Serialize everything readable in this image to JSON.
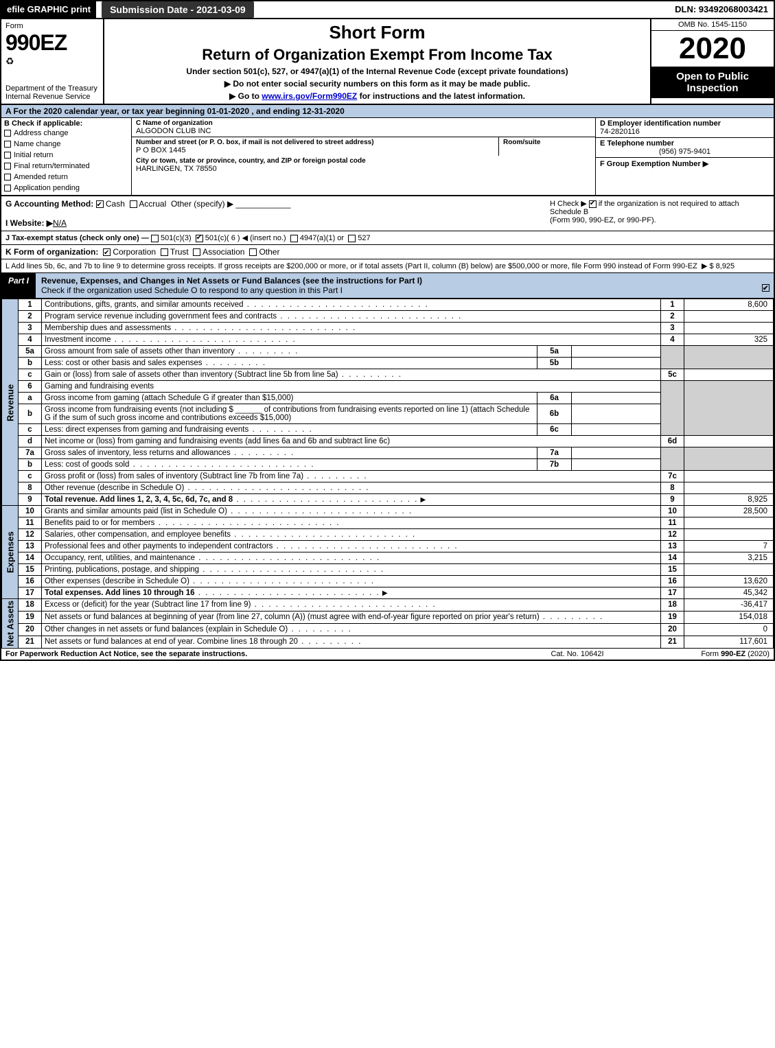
{
  "colors": {
    "black": "#000000",
    "white": "#ffffff",
    "header_blue": "#b8cce4",
    "shade_gray": "#d0d0d0",
    "link_blue": "#0000cc"
  },
  "top_bar": {
    "efile": "efile GRAPHIC print",
    "submission_date_label": "Submission Date - 2021-03-09",
    "dln": "DLN: 93492068003421"
  },
  "header": {
    "form_word": "Form",
    "form_number": "990EZ",
    "dept": "Department of the Treasury",
    "irs": "Internal Revenue Service",
    "short_form": "Short Form",
    "return_title": "Return of Organization Exempt From Income Tax",
    "under_section": "Under section 501(c), 527, or 4947(a)(1) of the Internal Revenue Code (except private foundations)",
    "do_not_enter": "▶ Do not enter social security numbers on this form as it may be made public.",
    "goto_prefix": "▶ Go to ",
    "goto_link": "www.irs.gov/Form990EZ",
    "goto_suffix": " for instructions and the latest information.",
    "omb": "OMB No. 1545-1150",
    "year": "2020",
    "open_public": "Open to Public Inspection"
  },
  "section_a": "A For the 2020 calendar year, or tax year beginning 01-01-2020 , and ending 12-31-2020",
  "entity": {
    "b_label": "B Check if applicable:",
    "checks": [
      "Address change",
      "Name change",
      "Initial return",
      "Final return/terminated",
      "Amended return",
      "Application pending"
    ],
    "c_label": "C Name of organization",
    "org_name": "ALGODON CLUB INC",
    "street_label": "Number and street (or P. O. box, if mail is not delivered to street address)",
    "street": "P O BOX 1445",
    "room_label": "Room/suite",
    "room": "",
    "city_label": "City or town, state or province, country, and ZIP or foreign postal code",
    "city": "HARLINGEN, TX  78550",
    "d_label": "D Employer identification number",
    "ein": "74-2820116",
    "e_label": "E Telephone number",
    "phone": "(956) 975-9401",
    "f_label": "F Group Exemption Number ▶",
    "f_value": ""
  },
  "g": {
    "label": "G Accounting Method:",
    "cash": "Cash",
    "accrual": "Accrual",
    "other": "Other (specify) ▶",
    "cash_checked": true
  },
  "h": {
    "text1": "H Check ▶",
    "text2": "if the organization is not required to attach Schedule B",
    "text3": "(Form 990, 990-EZ, or 990-PF).",
    "checked": true
  },
  "i": {
    "label": "I Website: ▶",
    "value": "N/A"
  },
  "j": {
    "label": "J Tax-exempt status (check only one) —",
    "opt1": "501(c)(3)",
    "opt2": "501(c)( 6 ) ◀ (insert no.)",
    "opt3": "4947(a)(1) or",
    "opt4": "527",
    "opt2_checked": true
  },
  "k": {
    "label": "K Form of organization:",
    "corp": "Corporation",
    "trust": "Trust",
    "assoc": "Association",
    "other": "Other",
    "corp_checked": true
  },
  "l": {
    "text": "L Add lines 5b, 6c, and 7b to line 9 to determine gross receipts. If gross receipts are $200,000 or more, or if total assets (Part II, column (B) below) are $500,000 or more, file Form 990 instead of Form 990-EZ",
    "arrow": "▶",
    "amount": "$ 8,925"
  },
  "part1": {
    "tag": "Part I",
    "title": "Revenue, Expenses, and Changes in Net Assets or Fund Balances (see the instructions for Part I)",
    "check_line": "Check if the organization used Schedule O to respond to any question in this Part I",
    "checked": true
  },
  "side_labels": {
    "revenue": "Revenue",
    "expenses": "Expenses",
    "netassets": "Net Assets"
  },
  "lines": {
    "1": {
      "no": "1",
      "desc": "Contributions, gifts, grants, and similar amounts received",
      "amt": "8,600"
    },
    "2": {
      "no": "2",
      "desc": "Program service revenue including government fees and contracts",
      "amt": ""
    },
    "3": {
      "no": "3",
      "desc": "Membership dues and assessments",
      "amt": ""
    },
    "4": {
      "no": "4",
      "desc": "Investment income",
      "amt": "325"
    },
    "5a": {
      "no": "5a",
      "desc": "Gross amount from sale of assets other than inventory",
      "sub": "5a",
      "subamt": ""
    },
    "5b": {
      "no": "b",
      "desc": "Less: cost or other basis and sales expenses",
      "sub": "5b",
      "subamt": ""
    },
    "5c": {
      "no": "c",
      "desc": "Gain or (loss) from sale of assets other than inventory (Subtract line 5b from line 5a)",
      "rn": "5c",
      "amt": ""
    },
    "6": {
      "no": "6",
      "desc": "Gaming and fundraising events"
    },
    "6a": {
      "no": "a",
      "desc": "Gross income from gaming (attach Schedule G if greater than $15,000)",
      "sub": "6a",
      "subamt": ""
    },
    "6b": {
      "no": "b",
      "desc1": "Gross income from fundraising events (not including $",
      "desc2": "of contributions from fundraising events reported on line 1) (attach Schedule G if the sum of such gross income and contributions exceeds $15,000)",
      "sub": "6b",
      "subamt": ""
    },
    "6c": {
      "no": "c",
      "desc": "Less: direct expenses from gaming and fundraising events",
      "sub": "6c",
      "subamt": ""
    },
    "6d": {
      "no": "d",
      "desc": "Net income or (loss) from gaming and fundraising events (add lines 6a and 6b and subtract line 6c)",
      "rn": "6d",
      "amt": ""
    },
    "7a": {
      "no": "7a",
      "desc": "Gross sales of inventory, less returns and allowances",
      "sub": "7a",
      "subamt": ""
    },
    "7b": {
      "no": "b",
      "desc": "Less: cost of goods sold",
      "sub": "7b",
      "subamt": ""
    },
    "7c": {
      "no": "c",
      "desc": "Gross profit or (loss) from sales of inventory (Subtract line 7b from line 7a)",
      "rn": "7c",
      "amt": ""
    },
    "8": {
      "no": "8",
      "desc": "Other revenue (describe in Schedule O)",
      "amt": ""
    },
    "9": {
      "no": "9",
      "desc": "Total revenue. Add lines 1, 2, 3, 4, 5c, 6d, 7c, and 8",
      "amt": "8,925",
      "bold": true
    },
    "10": {
      "no": "10",
      "desc": "Grants and similar amounts paid (list in Schedule O)",
      "amt": "28,500"
    },
    "11": {
      "no": "11",
      "desc": "Benefits paid to or for members",
      "amt": ""
    },
    "12": {
      "no": "12",
      "desc": "Salaries, other compensation, and employee benefits",
      "amt": ""
    },
    "13": {
      "no": "13",
      "desc": "Professional fees and other payments to independent contractors",
      "amt": "7"
    },
    "14": {
      "no": "14",
      "desc": "Occupancy, rent, utilities, and maintenance",
      "amt": "3,215"
    },
    "15": {
      "no": "15",
      "desc": "Printing, publications, postage, and shipping",
      "amt": ""
    },
    "16": {
      "no": "16",
      "desc": "Other expenses (describe in Schedule O)",
      "amt": "13,620"
    },
    "17": {
      "no": "17",
      "desc": "Total expenses. Add lines 10 through 16",
      "amt": "45,342",
      "bold": true
    },
    "18": {
      "no": "18",
      "desc": "Excess or (deficit) for the year (Subtract line 17 from line 9)",
      "amt": "-36,417"
    },
    "19": {
      "no": "19",
      "desc": "Net assets or fund balances at beginning of year (from line 27, column (A)) (must agree with end-of-year figure reported on prior year's return)",
      "amt": "154,018"
    },
    "20": {
      "no": "20",
      "desc": "Other changes in net assets or fund balances (explain in Schedule O)",
      "amt": "0"
    },
    "21": {
      "no": "21",
      "desc": "Net assets or fund balances at end of year. Combine lines 18 through 20",
      "amt": "117,601"
    }
  },
  "footer": {
    "left": "For Paperwork Reduction Act Notice, see the separate instructions.",
    "center": "Cat. No. 10642I",
    "right": "Form 990-EZ (2020)"
  }
}
